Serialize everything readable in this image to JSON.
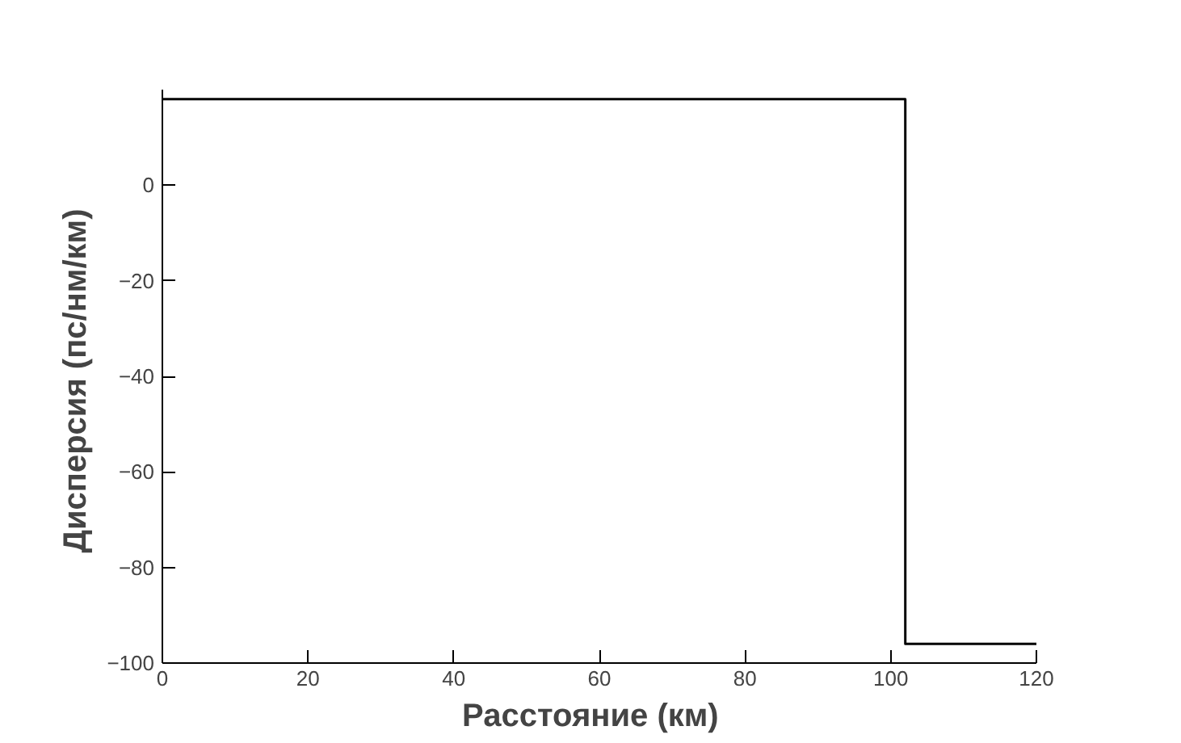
{
  "chart_data": {
    "type": "line",
    "xlabel": "Расстояние   (км)",
    "ylabel": "Дисперсия  (пс/нм/км)",
    "x": [
      0,
      102,
      102,
      120
    ],
    "series": [
      {
        "color": "#000000",
        "values": [
          18,
          18,
          -96,
          -96
        ]
      }
    ],
    "xlim": [
      0,
      120
    ],
    "xticks": [
      0,
      20,
      40,
      60,
      80,
      100,
      120
    ],
    "ylim": [
      -100,
      20
    ],
    "yticks": [
      -100,
      -80,
      -60,
      -40,
      -20,
      0
    ],
    "grid": false
  }
}
